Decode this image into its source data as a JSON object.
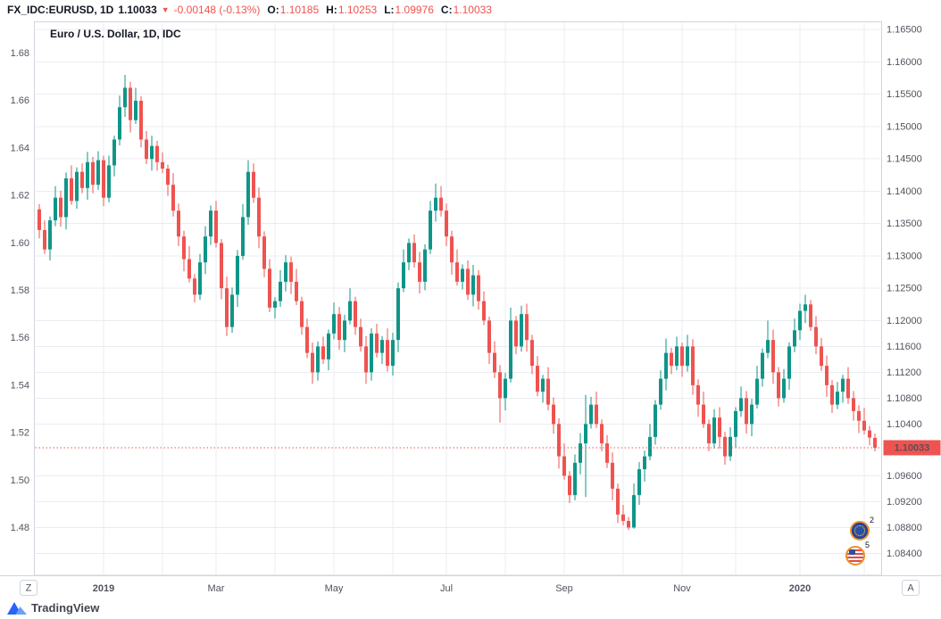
{
  "header": {
    "symbol": "FX_IDC:EURUSD, 1D",
    "last_price": "1.10033",
    "direction_icon": "▼",
    "change": "-0.00148 (-0.13%)",
    "ohlc": {
      "o_label": "O:",
      "o": "1.10185",
      "h_label": "H:",
      "h": "1.10253",
      "l_label": "L:",
      "l": "1.09976",
      "c_label": "C:",
      "c": "1.10033"
    }
  },
  "chart": {
    "legend_title": "Euro / U.S. Dollar, 1D, IDC",
    "timezone_button": "Z",
    "auto_button": "A",
    "price_badge": "1.10033",
    "left_axis_labels": [
      "1.68",
      "1.66",
      "1.64",
      "1.62",
      "1.60",
      "1.58",
      "1.56",
      "1.54",
      "1.52",
      "1.50",
      "1.48"
    ],
    "right_axis_labels": [
      "1.16500",
      "1.16000",
      "1.15500",
      "1.15000",
      "1.14500",
      "1.14000",
      "1.13500",
      "1.13000",
      "1.12500",
      "1.12000",
      "1.11600",
      "1.11200",
      "1.10800",
      "1.10400",
      "1.09600",
      "1.09200",
      "1.08800",
      "1.08400"
    ],
    "colors": {
      "up": "#0f9588",
      "down": "#ef5350",
      "badge": "#ef5350",
      "grid": "#e9ecf1",
      "border": "#d1d4dc",
      "text": "#50535e"
    }
  },
  "chart_data": {
    "type": "candlestick",
    "title": "Euro / U.S. Dollar, 1D, IDC",
    "symbol": "EURUSD",
    "interval": "1D",
    "exchange": "IDC",
    "current_price": 1.10033,
    "price_line": 1.10033,
    "price_range": [
      1.0806,
      1.1662
    ],
    "right_axis_ticks": [
      1.165,
      1.16,
      1.155,
      1.15,
      1.145,
      1.14,
      1.135,
      1.13,
      1.125,
      1.12,
      1.116,
      1.112,
      1.108,
      1.104,
      1.096,
      1.092,
      1.088,
      1.084
    ],
    "left_axis_ticks": [
      1.68,
      1.66,
      1.64,
      1.62,
      1.6,
      1.58,
      1.56,
      1.54,
      1.52,
      1.5,
      1.48
    ],
    "x_ticks": [
      {
        "label": "2019",
        "index": 12
      },
      {
        "label": "Mar",
        "index": 33
      },
      {
        "label": "May",
        "index": 55
      },
      {
        "label": "Jul",
        "index": 76
      },
      {
        "label": "Sep",
        "index": 98
      },
      {
        "label": "Nov",
        "index": 120
      },
      {
        "label": "2020",
        "index": 142
      }
    ],
    "month_grid_indices": [
      12,
      23,
      33,
      44,
      55,
      66,
      76,
      87,
      98,
      109,
      120,
      130,
      142,
      154
    ],
    "candles": [
      [
        1.1372,
        1.138,
        1.1327,
        1.134
      ],
      [
        1.134,
        1.1355,
        1.1303,
        1.131
      ],
      [
        1.131,
        1.1361,
        1.1293,
        1.1355
      ],
      [
        1.1355,
        1.1408,
        1.1346,
        1.139
      ],
      [
        1.139,
        1.1401,
        1.1345,
        1.136
      ],
      [
        1.136,
        1.1429,
        1.1341,
        1.142
      ],
      [
        1.142,
        1.144,
        1.1379,
        1.1385
      ],
      [
        1.1385,
        1.1437,
        1.1373,
        1.143
      ],
      [
        1.143,
        1.1443,
        1.1397,
        1.1405
      ],
      [
        1.1405,
        1.1461,
        1.1387,
        1.1445
      ],
      [
        1.1445,
        1.1453,
        1.1397,
        1.141
      ],
      [
        1.141,
        1.1462,
        1.1402,
        1.1448
      ],
      [
        1.1448,
        1.1455,
        1.1377,
        1.139
      ],
      [
        1.139,
        1.1455,
        1.1383,
        1.144
      ],
      [
        1.144,
        1.1486,
        1.1423,
        1.148
      ],
      [
        1.148,
        1.1548,
        1.1471,
        1.153
      ],
      [
        1.153,
        1.158,
        1.1515,
        1.156
      ],
      [
        1.156,
        1.1569,
        1.1491,
        1.151
      ],
      [
        1.151,
        1.156,
        1.1504,
        1.154
      ],
      [
        1.154,
        1.1547,
        1.1468,
        1.148
      ],
      [
        1.148,
        1.1493,
        1.1442,
        1.145
      ],
      [
        1.145,
        1.1486,
        1.1432,
        1.147
      ],
      [
        1.147,
        1.1478,
        1.1432,
        1.1445
      ],
      [
        1.1445,
        1.146,
        1.1428,
        1.1435
      ],
      [
        1.1435,
        1.1441,
        1.1393,
        1.141
      ],
      [
        1.141,
        1.1428,
        1.1361,
        1.137
      ],
      [
        1.137,
        1.1381,
        1.1315,
        1.133
      ],
      [
        1.133,
        1.1339,
        1.1276,
        1.1295
      ],
      [
        1.1295,
        1.1315,
        1.1259,
        1.1265
      ],
      [
        1.1265,
        1.1272,
        1.1228,
        1.124
      ],
      [
        1.124,
        1.1303,
        1.1232,
        1.129
      ],
      [
        1.129,
        1.1346,
        1.1272,
        1.133
      ],
      [
        1.133,
        1.1378,
        1.1317,
        1.137
      ],
      [
        1.137,
        1.1385,
        1.1313,
        1.132
      ],
      [
        1.132,
        1.1326,
        1.1233,
        1.125
      ],
      [
        1.125,
        1.1268,
        1.1176,
        1.119
      ],
      [
        1.119,
        1.1251,
        1.1181,
        1.124
      ],
      [
        1.124,
        1.1309,
        1.1221,
        1.13
      ],
      [
        1.13,
        1.138,
        1.1294,
        1.136
      ],
      [
        1.136,
        1.1448,
        1.1348,
        1.143
      ],
      [
        1.143,
        1.1443,
        1.1382,
        1.139
      ],
      [
        1.139,
        1.1406,
        1.1312,
        1.133
      ],
      [
        1.133,
        1.1338,
        1.1267,
        1.128
      ],
      [
        1.128,
        1.1295,
        1.1213,
        1.122
      ],
      [
        1.122,
        1.1236,
        1.1203,
        1.123
      ],
      [
        1.123,
        1.1278,
        1.1221,
        1.126
      ],
      [
        1.126,
        1.1301,
        1.1245,
        1.129
      ],
      [
        1.129,
        1.1299,
        1.1241,
        1.126
      ],
      [
        1.126,
        1.128,
        1.1224,
        1.123
      ],
      [
        1.123,
        1.1237,
        1.1178,
        1.119
      ],
      [
        1.119,
        1.1203,
        1.1142,
        1.115
      ],
      [
        1.115,
        1.1166,
        1.1102,
        1.112
      ],
      [
        1.112,
        1.1168,
        1.1107,
        1.116
      ],
      [
        1.116,
        1.1175,
        1.1133,
        1.114
      ],
      [
        1.114,
        1.1186,
        1.1123,
        1.118
      ],
      [
        1.118,
        1.1228,
        1.1171,
        1.121
      ],
      [
        1.121,
        1.1221,
        1.1155,
        1.117
      ],
      [
        1.117,
        1.1209,
        1.1151,
        1.12
      ],
      [
        1.12,
        1.125,
        1.1194,
        1.123
      ],
      [
        1.123,
        1.1237,
        1.1178,
        1.119
      ],
      [
        1.119,
        1.1203,
        1.1152,
        1.116
      ],
      [
        1.116,
        1.1176,
        1.1102,
        1.112
      ],
      [
        1.112,
        1.1188,
        1.1107,
        1.118
      ],
      [
        1.118,
        1.1195,
        1.1143,
        1.115
      ],
      [
        1.115,
        1.1176,
        1.1133,
        1.117
      ],
      [
        1.117,
        1.1188,
        1.1121,
        1.113
      ],
      [
        1.113,
        1.1181,
        1.1115,
        1.117
      ],
      [
        1.117,
        1.1259,
        1.1151,
        1.125
      ],
      [
        1.125,
        1.131,
        1.1244,
        1.129
      ],
      [
        1.129,
        1.1327,
        1.1278,
        1.132
      ],
      [
        1.132,
        1.1333,
        1.1282,
        1.129
      ],
      [
        1.129,
        1.1306,
        1.1242,
        1.126
      ],
      [
        1.126,
        1.1318,
        1.1247,
        1.131
      ],
      [
        1.131,
        1.1385,
        1.1303,
        1.137
      ],
      [
        1.137,
        1.1412,
        1.1353,
        1.139
      ],
      [
        1.139,
        1.1408,
        1.1361,
        1.137
      ],
      [
        1.137,
        1.1381,
        1.1315,
        1.133
      ],
      [
        1.133,
        1.1339,
        1.1271,
        1.129
      ],
      [
        1.129,
        1.131,
        1.1254,
        1.126
      ],
      [
        1.126,
        1.1287,
        1.1248,
        1.128
      ],
      [
        1.128,
        1.1293,
        1.1232,
        1.124
      ],
      [
        1.124,
        1.1286,
        1.1222,
        1.127
      ],
      [
        1.127,
        1.1278,
        1.1217,
        1.123
      ],
      [
        1.123,
        1.1245,
        1.1193,
        1.12
      ],
      [
        1.12,
        1.1206,
        1.1133,
        1.115
      ],
      [
        1.115,
        1.1168,
        1.1111,
        1.112
      ],
      [
        1.112,
        1.1131,
        1.1042,
        1.108
      ],
      [
        1.108,
        1.1119,
        1.1061,
        1.111
      ],
      [
        1.111,
        1.122,
        1.1104,
        1.12
      ],
      [
        1.12,
        1.1207,
        1.1148,
        1.116
      ],
      [
        1.116,
        1.1223,
        1.1152,
        1.121
      ],
      [
        1.121,
        1.1226,
        1.1152,
        1.117
      ],
      [
        1.117,
        1.1178,
        1.1117,
        1.113
      ],
      [
        1.113,
        1.1145,
        1.1083,
        1.109
      ],
      [
        1.109,
        1.1116,
        1.1073,
        1.111
      ],
      [
        1.111,
        1.1128,
        1.1061,
        1.107
      ],
      [
        1.107,
        1.1081,
        1.1025,
        1.104
      ],
      [
        1.104,
        1.1049,
        1.0971,
        1.099
      ],
      [
        1.099,
        1.101,
        1.0954,
        1.096
      ],
      [
        1.096,
        1.0967,
        1.0918,
        1.093
      ],
      [
        1.093,
        1.0993,
        1.0922,
        1.098
      ],
      [
        1.098,
        1.1026,
        1.0962,
        1.101
      ],
      [
        1.101,
        1.1085,
        1.0927,
        1.104
      ],
      [
        1.104,
        1.1082,
        1.1033,
        1.107
      ],
      [
        1.107,
        1.109,
        1.1034,
        1.104
      ],
      [
        1.104,
        1.1047,
        1.0998,
        1.101
      ],
      [
        1.101,
        1.1023,
        1.0972,
        1.098
      ],
      [
        1.098,
        1.0996,
        1.0922,
        1.094
      ],
      [
        1.094,
        1.0948,
        1.0887,
        1.09
      ],
      [
        1.09,
        1.0915,
        1.0883,
        1.089
      ],
      [
        1.089,
        1.0896,
        1.0876,
        1.088
      ],
      [
        1.088,
        1.0948,
        1.0878,
        1.093
      ],
      [
        1.093,
        1.0981,
        1.0915,
        1.097
      ],
      [
        1.097,
        1.0999,
        1.0951,
        1.099
      ],
      [
        1.099,
        1.104,
        1.0984,
        1.102
      ],
      [
        1.102,
        1.1077,
        1.1008,
        1.107
      ],
      [
        1.107,
        1.1123,
        1.1062,
        1.111
      ],
      [
        1.111,
        1.1172,
        1.1092,
        1.115
      ],
      [
        1.115,
        1.1158,
        1.1117,
        1.113
      ],
      [
        1.113,
        1.1175,
        1.1123,
        1.116
      ],
      [
        1.116,
        1.1166,
        1.1113,
        1.113
      ],
      [
        1.113,
        1.1178,
        1.1121,
        1.116
      ],
      [
        1.116,
        1.1171,
        1.1085,
        1.11
      ],
      [
        1.11,
        1.1109,
        1.1051,
        1.107
      ],
      [
        1.107,
        1.109,
        1.1034,
        1.104
      ],
      [
        1.104,
        1.1047,
        1.0998,
        1.101
      ],
      [
        1.101,
        1.1063,
        1.1002,
        1.105
      ],
      [
        1.105,
        1.1066,
        1.1002,
        1.102
      ],
      [
        1.102,
        1.1028,
        1.0977,
        1.099
      ],
      [
        1.099,
        1.1035,
        1.0983,
        1.102
      ],
      [
        1.102,
        1.1066,
        1.1003,
        1.106
      ],
      [
        1.106,
        1.1098,
        1.1051,
        1.108
      ],
      [
        1.108,
        1.1091,
        1.1025,
        1.104
      ],
      [
        1.104,
        1.1079,
        1.1021,
        1.107
      ],
      [
        1.107,
        1.113,
        1.1064,
        1.111
      ],
      [
        1.111,
        1.1157,
        1.1098,
        1.115
      ],
      [
        1.115,
        1.12,
        1.1142,
        1.117
      ],
      [
        1.117,
        1.1186,
        1.1102,
        1.112
      ],
      [
        1.112,
        1.1128,
        1.1067,
        1.108
      ],
      [
        1.108,
        1.1125,
        1.1073,
        1.111
      ],
      [
        1.111,
        1.1166,
        1.1093,
        1.116
      ],
      [
        1.116,
        1.1203,
        1.1151,
        1.1185
      ],
      [
        1.1185,
        1.1226,
        1.117,
        1.1215
      ],
      [
        1.1215,
        1.124,
        1.1196,
        1.1225
      ],
      [
        1.1225,
        1.1232,
        1.1184,
        1.119
      ],
      [
        1.119,
        1.1207,
        1.1148,
        1.116
      ],
      [
        1.116,
        1.1173,
        1.1122,
        1.113
      ],
      [
        1.113,
        1.1146,
        1.1082,
        1.11
      ],
      [
        1.11,
        1.1108,
        1.1057,
        1.107
      ],
      [
        1.107,
        1.1105,
        1.1063,
        1.109
      ],
      [
        1.109,
        1.1116,
        1.1073,
        1.111
      ],
      [
        1.111,
        1.1128,
        1.1071,
        1.108
      ],
      [
        1.108,
        1.1091,
        1.1045,
        1.106
      ],
      [
        1.106,
        1.1069,
        1.1026,
        1.1045
      ],
      [
        1.1045,
        1.1065,
        1.1024,
        1.103
      ],
      [
        1.103,
        1.1037,
        1.1007,
        1.1019
      ],
      [
        1.10185,
        1.10253,
        1.09976,
        1.10033
      ]
    ]
  },
  "annotations": [
    {
      "number": "2",
      "icon": "eu-flag-coin"
    },
    {
      "number": "5",
      "icon": "us-flag-coin"
    }
  ],
  "footer": {
    "brand": "TradingView"
  }
}
